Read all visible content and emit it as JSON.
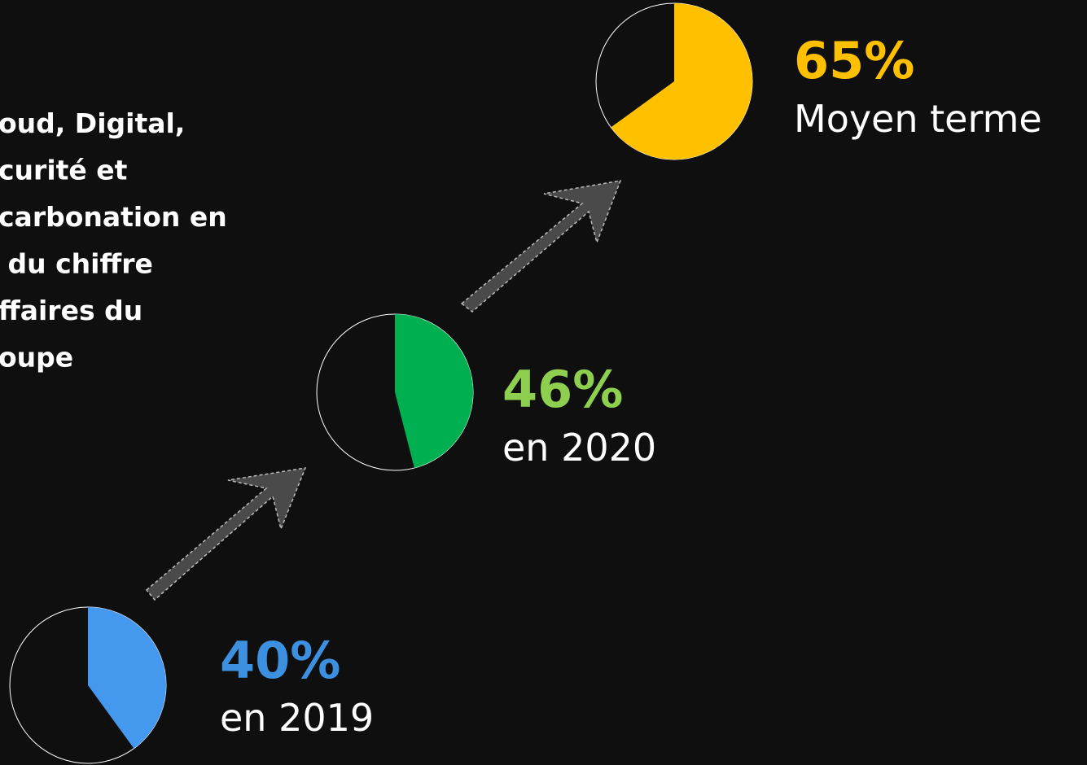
{
  "description": [
    "oud, Digital,",
    "curité et",
    "carbonation en",
    " du chiffre",
    "ffaires du",
    "oupe"
  ],
  "chart_data": [
    {
      "type": "pie",
      "values": [
        40
      ],
      "value_labels": [
        "40%"
      ],
      "caption": "en 2019",
      "colors": [
        "#4499ee"
      ],
      "label_color": "#3d8fe0"
    },
    {
      "type": "pie",
      "values": [
        46
      ],
      "value_labels": [
        "46%"
      ],
      "caption": "en 2020",
      "colors": [
        "#00b050"
      ],
      "label_color": "#8fcf4f"
    },
    {
      "type": "pie",
      "values": [
        65
      ],
      "value_labels": [
        "65%"
      ],
      "caption": "Moyen terme",
      "colors": [
        "#ffc000"
      ],
      "label_color": "#ffc000"
    }
  ]
}
